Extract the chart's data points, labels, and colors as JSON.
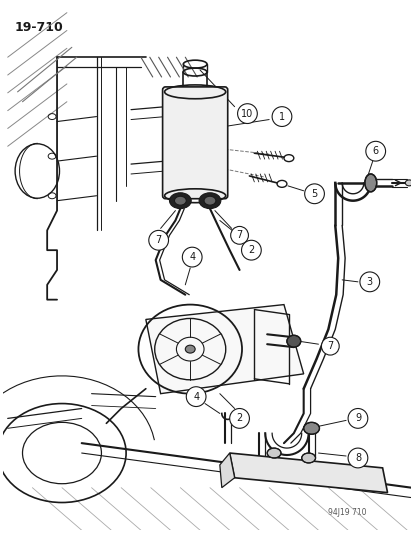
{
  "figure_number": "19-710",
  "stamp": "94J19 710",
  "background_color": "#ffffff",
  "line_color": "#1a1a1a",
  "figsize": [
    4.14,
    5.33
  ],
  "dpi": 100
}
